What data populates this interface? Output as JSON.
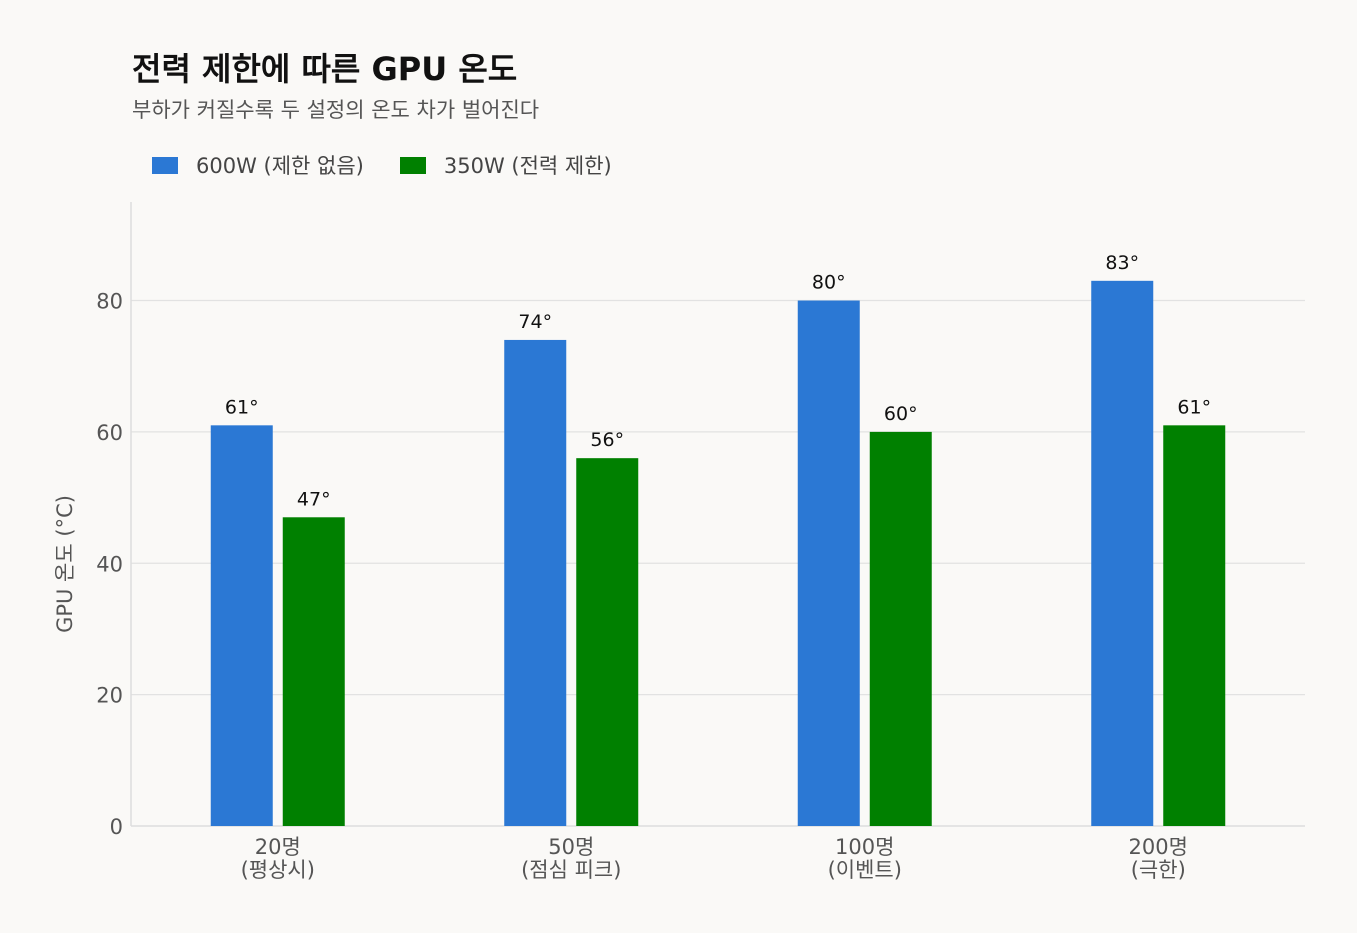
{
  "title": "전력 제한에 따른 GPU 온도",
  "subtitle": "부하가 커질수록 두 설정의 온도 차가 벌어진다",
  "colors": {
    "background": "#faf9f7",
    "series_600w": "#2b78d4",
    "series_350w": "#008000",
    "grid": "#e2e2e2",
    "axis_text": "#555555"
  },
  "chart_data": {
    "type": "bar",
    "categories": [
      [
        "20명",
        "(평상시)"
      ],
      [
        "50명",
        "(점심 피크)"
      ],
      [
        "100명",
        "(이벤트)"
      ],
      [
        "200명",
        "(극한)"
      ]
    ],
    "series": [
      {
        "name": "600W (제한 없음)",
        "color": "#2b78d4",
        "values": [
          61,
          74,
          80,
          83
        ],
        "labels": [
          "61°",
          "74°",
          "80°",
          "83°"
        ]
      },
      {
        "name": "350W (전력 제한)",
        "color": "#008000",
        "values": [
          47,
          56,
          60,
          61
        ],
        "labels": [
          "47°",
          "56°",
          "60°",
          "61°"
        ]
      }
    ],
    "ylabel": "GPU 온도 (°C)",
    "xlabel": "",
    "ylim": [
      0,
      95
    ],
    "yticks": [
      0,
      20,
      40,
      60,
      80
    ],
    "grid": true,
    "legend_position": "top-left"
  }
}
